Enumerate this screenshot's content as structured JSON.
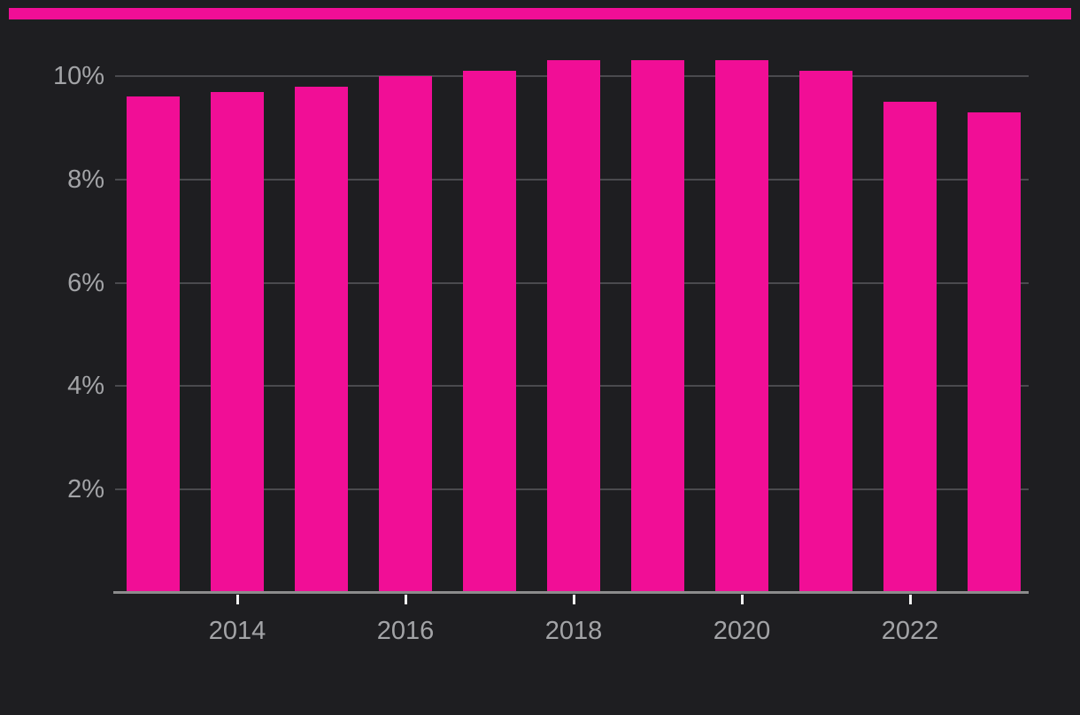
{
  "accent_bar": {
    "color": "#F10E96"
  },
  "chart_data": {
    "type": "bar",
    "title": "",
    "xlabel": "",
    "ylabel": "",
    "unit": "%",
    "categories": [
      "2013",
      "2014",
      "2015",
      "2016",
      "2017",
      "2018",
      "2019",
      "2020",
      "2021",
      "2022",
      "2023"
    ],
    "values": [
      9.6,
      9.7,
      9.8,
      10.0,
      10.1,
      10.3,
      10.3,
      10.3,
      10.1,
      9.5,
      9.3
    ],
    "x_axis": {
      "tick_labels": [
        "2014",
        "2016",
        "2018",
        "2020",
        "2022"
      ],
      "tick_category_indices": [
        1,
        3,
        5,
        7,
        9
      ]
    },
    "y_axis": {
      "tick_labels": [
        "2%",
        "4%",
        "6%",
        "8%",
        "10%"
      ],
      "tick_values": [
        2,
        4,
        6,
        8,
        10
      ],
      "ylim": [
        0,
        10.8
      ]
    },
    "grid": true,
    "legend": false,
    "colors": {
      "bar": "#F10E96",
      "background": "#1E1E21",
      "gridline": "#4A4A4E",
      "axis_line": "#8C8C8C",
      "tick_mark": "#F2F2F2",
      "label_text": "#A3A4A7"
    }
  }
}
